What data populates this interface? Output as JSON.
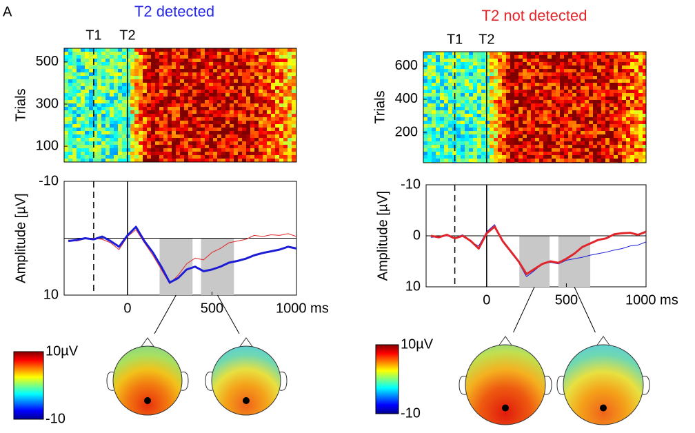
{
  "panel_label": "A",
  "chart_data": [
    {
      "type": "line",
      "title": "T2 detected",
      "title_color": "#2a2ae6",
      "ylabel": "Amplitude [µV]",
      "x": [
        -350,
        -300,
        -250,
        -200,
        -150,
        -100,
        -50,
        0,
        50,
        100,
        150,
        200,
        250,
        300,
        350,
        400,
        450,
        500,
        550,
        600,
        650,
        700,
        750,
        800,
        850,
        900,
        950,
        1000
      ],
      "xlim": [
        -375,
        1000
      ],
      "xticks": [
        0,
        500,
        {
          "value": 1000,
          "label": "1000 ms"
        }
      ],
      "ylim": [
        -10,
        10
      ],
      "y_inverted": true,
      "yticks": [
        -10,
        10
      ],
      "markers": [
        {
          "label": "T1",
          "x": -200,
          "style": "dashed"
        },
        {
          "label": "T2",
          "x": 0,
          "style": "solid"
        }
      ],
      "windows": [
        [
          190,
          385
        ],
        [
          435,
          630
        ]
      ],
      "series": [
        {
          "color": "#e0262a",
          "width": 1,
          "values": [
            0.3,
            0.5,
            0.1,
            0,
            0.2,
            0.8,
            2,
            -0.3,
            -1.5,
            0.8,
            3,
            5.5,
            8,
            6.5,
            4.5,
            3.5,
            3.8,
            2.5,
            1.8,
            0.8,
            0.5,
            0.2,
            -0.5,
            -0.3,
            -0.6,
            -0.5,
            -0.8,
            -0.3
          ]
        },
        {
          "color": "#1d1dd6",
          "width": 3,
          "values": [
            0.5,
            0.3,
            0,
            0.2,
            -0.3,
            0.5,
            1.5,
            -0.5,
            -2,
            0.5,
            2.5,
            5,
            7.8,
            7,
            5.5,
            5,
            5.8,
            5.5,
            5,
            4.3,
            4,
            3.6,
            3,
            2.6,
            2.3,
            2,
            1.5,
            1.8
          ]
        }
      ]
    },
    {
      "type": "line",
      "title": "T2 not detected",
      "title_color": "#e0262a",
      "ylabel": "Amplitude [µV]",
      "x": [
        -350,
        -300,
        -250,
        -200,
        -150,
        -100,
        -50,
        0,
        50,
        100,
        150,
        200,
        250,
        300,
        350,
        400,
        450,
        500,
        550,
        600,
        650,
        700,
        750,
        800,
        850,
        900,
        950,
        1000
      ],
      "xlim": [
        -380,
        1000
      ],
      "xticks": [
        0,
        500,
        {
          "value": 1000,
          "label": "1000 ms"
        }
      ],
      "ylim": [
        -10,
        10
      ],
      "y_inverted": true,
      "yticks": [
        -10,
        0,
        10
      ],
      "markers": [
        {
          "label": "T1",
          "x": -200,
          "style": "dashed"
        },
        {
          "label": "T2",
          "x": 0,
          "style": "solid"
        }
      ],
      "windows": [
        [
          205,
          395
        ],
        [
          450,
          650
        ]
      ],
      "series": [
        {
          "color": "#1d1dd6",
          "width": 1,
          "values": [
            0.3,
            0.2,
            0,
            0.4,
            -0.2,
            1.2,
            2,
            -0.8,
            -2.2,
            1.2,
            3.2,
            5.2,
            8,
            6.8,
            5.5,
            5.2,
            5.5,
            4.8,
            4.5,
            4.2,
            3.8,
            3.5,
            3.2,
            2.8,
            2.5,
            2,
            1.8,
            1.2
          ]
        },
        {
          "color": "#e0262a",
          "width": 3,
          "values": [
            0,
            0.3,
            -0.2,
            0.5,
            0,
            1,
            2.5,
            -0.5,
            -1.8,
            1,
            3,
            5,
            7.5,
            6.5,
            5.5,
            5,
            5.3,
            4.5,
            3.5,
            2.2,
            1.5,
            0.8,
            0.5,
            -0.3,
            -0.5,
            -0.6,
            -0.2,
            -0.8
          ]
        }
      ]
    }
  ],
  "heatmaps": [
    {
      "ylabel": "Trials",
      "ylim": [
        25,
        565
      ],
      "yticks": [
        100,
        300,
        500
      ]
    },
    {
      "ylabel": "Trials",
      "ylim": [
        17,
        687
      ],
      "yticks": [
        200,
        400,
        600
      ]
    }
  ],
  "colorbars": [
    {
      "max_label": "10µV",
      "min_label": "-10"
    },
    {
      "max_label": "10µV",
      "min_label": "-10"
    }
  ]
}
